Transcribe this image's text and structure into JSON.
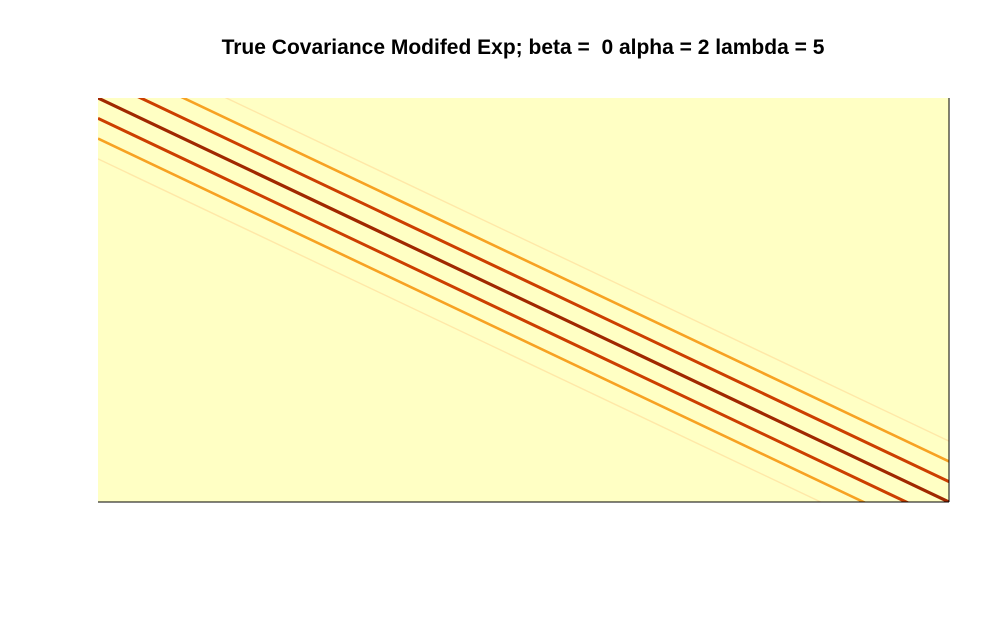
{
  "chart_data": {
    "type": "heatmap",
    "title": "True Covariance Modifed Exp; beta =  0 alpha = 2 lambda = 5",
    "xlabel": "",
    "ylabel": "",
    "colormap": "heat (yellow to dark red)",
    "background_color": "#ffffc4",
    "axes": "none",
    "grid": false,
    "legend": "none",
    "structure": "banded diagonal matrix; value decreases with distance from main diagonal",
    "bands": [
      {
        "offset": 0,
        "color": "#a02800",
        "value_level": "highest"
      },
      {
        "offset": -1,
        "color": "#cc3f00",
        "value_level": "high"
      },
      {
        "offset": 1,
        "color": "#cc3f00",
        "value_level": "high"
      },
      {
        "offset": -2,
        "color": "#f7a223",
        "value_level": "medium"
      },
      {
        "offset": 2,
        "color": "#f7a223",
        "value_level": "medium"
      },
      {
        "offset": -3,
        "color": "#ffe8a8",
        "value_level": "low"
      },
      {
        "offset": 3,
        "color": "#ffe8a8",
        "value_level": "low"
      }
    ]
  }
}
